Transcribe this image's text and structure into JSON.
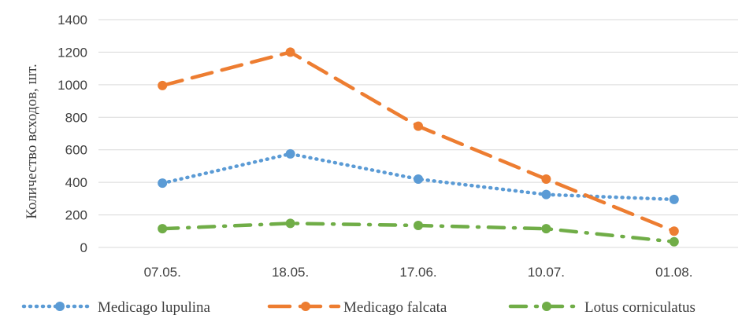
{
  "chart_data": {
    "type": "line",
    "title": "",
    "xlabel": "",
    "ylabel": "Количество всходов, шт.",
    "categories": [
      "07.05.",
      "18.05.",
      "17.06.",
      "10.07.",
      "01.08."
    ],
    "ylim": [
      0,
      1400
    ],
    "yticks": [
      0,
      200,
      400,
      600,
      800,
      1000,
      1200,
      1400
    ],
    "grid": true,
    "legend_position": "bottom",
    "series": [
      {
        "name": "Medicago lupulina",
        "values": [
          395,
          575,
          420,
          325,
          295
        ],
        "color": "#5B9BD5",
        "line_style": "dotted"
      },
      {
        "name": "Medicago falcata",
        "values": [
          995,
          1200,
          745,
          420,
          100
        ],
        "color": "#ED7D31",
        "line_style": "dashed"
      },
      {
        "name": "Lotus corniculatus",
        "values": [
          115,
          148,
          135,
          115,
          35
        ],
        "color": "#70AD47",
        "line_style": "dash-dot"
      }
    ]
  }
}
